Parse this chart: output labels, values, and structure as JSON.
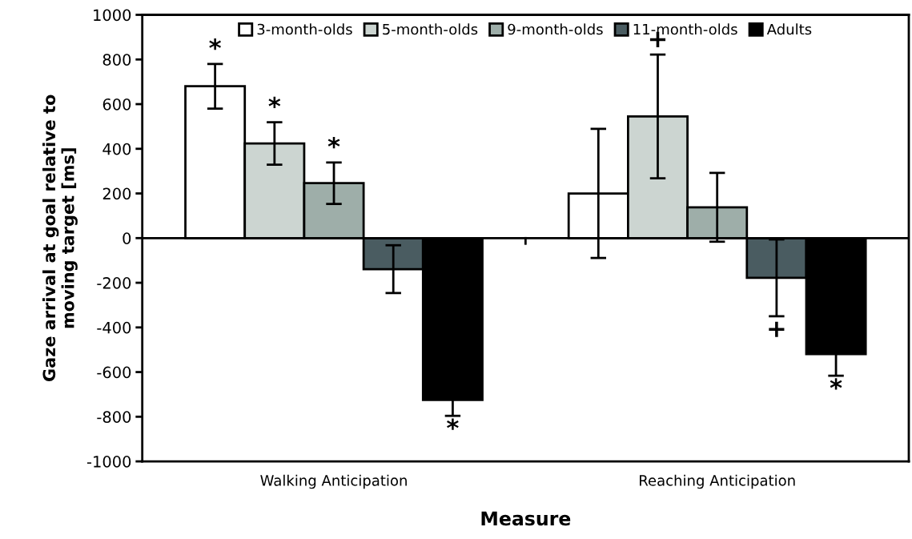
{
  "chart_data": {
    "type": "bar",
    "xlabel": "Measure",
    "ylabel": "Gaze arrival at goal relative to\nmoving target [ms]",
    "categories": [
      "Walking Anticipation",
      "Reaching Anticipation"
    ],
    "series": [
      {
        "name": "3-month-olds",
        "color": "#ffffff",
        "values": [
          680,
          200
        ],
        "errors": [
          100,
          289
        ],
        "value_labels": [
          "*",
          null
        ]
      },
      {
        "name": "5-month-olds",
        "color": "#ccd5d1",
        "values": [
          424,
          545
        ],
        "errors": [
          95,
          277
        ],
        "value_labels": [
          "*",
          "+"
        ]
      },
      {
        "name": "9-month-olds",
        "color": "#9eaea9",
        "values": [
          246,
          138
        ],
        "errors": [
          93,
          154
        ],
        "value_labels": [
          "*",
          null
        ]
      },
      {
        "name": "11-month-olds",
        "color": "#4a5c61",
        "values": [
          -139,
          -178
        ],
        "errors": [
          107,
          172
        ],
        "value_labels": [
          null,
          "+"
        ]
      },
      {
        "name": "Adults",
        "color": "#000000",
        "values": [
          -725,
          -519
        ],
        "errors": [
          71,
          97
        ],
        "value_labels": [
          "*",
          "*"
        ]
      }
    ],
    "ylim": [
      -1000,
      1000
    ],
    "yticks": [
      -1000,
      -800,
      -600,
      -400,
      -200,
      0,
      200,
      400,
      600,
      800,
      1000
    ],
    "legend": "top"
  }
}
